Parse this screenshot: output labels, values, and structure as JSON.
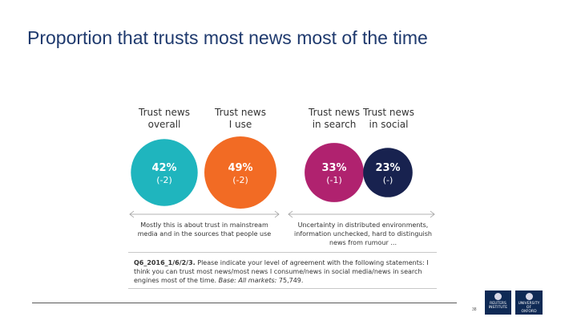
{
  "title": "Proportion that trusts most news most of the time",
  "colors": {
    "title": "#1f3a6e",
    "teal": "#1fb5be",
    "orange": "#f26b24",
    "magenta": "#b0226f",
    "navy": "#18224f"
  },
  "chart_data": {
    "type": "bubble",
    "categories": [
      {
        "label_lines": [
          "Trust news",
          "overall"
        ],
        "value_label": "42%",
        "change_label": "(-2)",
        "value": 42,
        "change": -2,
        "color": "#1fb5be"
      },
      {
        "label_lines": [
          "Trust news",
          "I use"
        ],
        "value_label": "49%",
        "change_label": "(-2)",
        "value": 49,
        "change": -2,
        "color": "#f26b24"
      },
      {
        "label_lines": [
          "Trust news",
          "in search"
        ],
        "value_label": "33%",
        "change_label": "(-1)",
        "value": 33,
        "change": -1,
        "color": "#b0226f"
      },
      {
        "label_lines": [
          "Trust news",
          "in social"
        ],
        "value_label": "23%",
        "change_label": "(-)",
        "value": 23,
        "change": null,
        "color": "#18224f"
      }
    ],
    "groups": [
      {
        "caption_lines": [
          "Mostly this is about trust in mainstream",
          "media and in the sources that people use"
        ]
      },
      {
        "caption_lines": [
          "Uncertainty in distributed environments,",
          "information unchecked, hard to distinguish",
          "news from rumour ..."
        ]
      }
    ]
  },
  "question": {
    "code": "Q6_2016_1/6/2/3.",
    "text": " Please indicate your level of agreement with the following statements: I think you can trust most news/most news I consume/news in social media/news in search engines most of the time. ",
    "base_label": "Base: All markets:",
    "base_value": " 75,749."
  },
  "footer": {
    "page_number": "38",
    "logo_reuters": [
      "REUTERS",
      "INSTITUTE"
    ],
    "logo_oxford": [
      "UNIVERSITY OF",
      "OXFORD"
    ]
  }
}
